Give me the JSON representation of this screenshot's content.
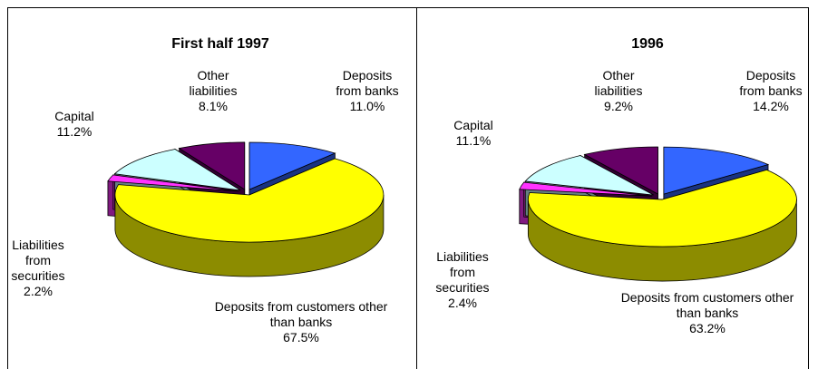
{
  "chart_data": [
    {
      "type": "pie",
      "title": "First half 1997",
      "categories": [
        "Deposits from banks",
        "Deposits from customers other than banks",
        "Liabilities from securities",
        "Capital",
        "Other liabilities"
      ],
      "values": [
        11.0,
        67.5,
        2.2,
        11.2,
        8.1
      ],
      "value_labels": [
        "11.0%",
        "67.5%",
        "2.2%",
        "11.2%",
        "8.1%"
      ],
      "colors": [
        "#3366ff",
        "#ffff00",
        "#ff33ff",
        "#ccffff",
        "#660066"
      ]
    },
    {
      "type": "pie",
      "title": "1996",
      "categories": [
        "Deposits from banks",
        "Deposits from customers other than banks",
        "Liabilities from securities",
        "Capital",
        "Other liabilities"
      ],
      "values": [
        14.2,
        63.2,
        2.4,
        11.1,
        9.2
      ],
      "value_labels": [
        "14.2%",
        "63.2%",
        "2.4%",
        "11.1%",
        "9.2%"
      ],
      "colors": [
        "#3366ff",
        "#ffff00",
        "#ff33ff",
        "#ccffff",
        "#660066"
      ]
    }
  ]
}
